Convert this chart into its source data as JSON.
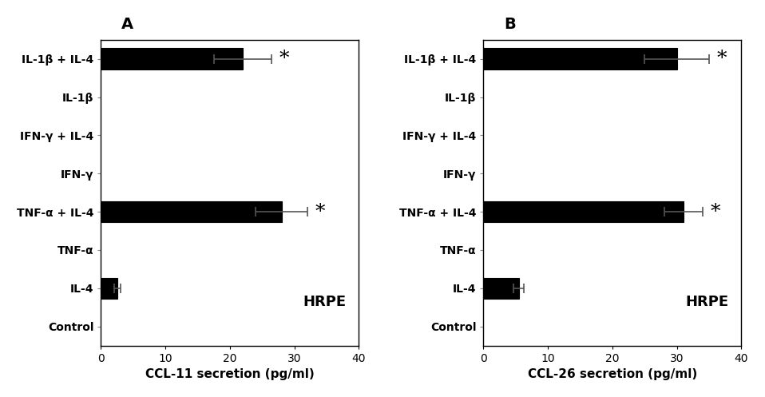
{
  "panel_A": {
    "title": "A",
    "xlabel": "CCL-11 secretion (pg/ml)",
    "categories": [
      "IL-1β + IL-4",
      "IL-1β",
      "IFN-γ + IL-4",
      "IFN-γ",
      "TNF-α + IL-4",
      "TNF-α",
      "IL-4",
      "Control"
    ],
    "values": [
      22.0,
      0.0,
      0.0,
      0.0,
      28.0,
      0.0,
      2.5,
      0.0
    ],
    "errors": [
      4.5,
      0.0,
      0.0,
      0.0,
      4.0,
      0.0,
      0.5,
      0.0
    ],
    "significant": [
      true,
      false,
      false,
      false,
      true,
      false,
      false,
      false
    ],
    "xlim": [
      0,
      40
    ],
    "xticks": [
      0,
      10,
      20,
      30,
      40
    ],
    "annotation": "HRPE"
  },
  "panel_B": {
    "title": "B",
    "xlabel": "CCL-26 secretion (pg/ml)",
    "categories": [
      "IL-1β + IL-4",
      "IL-1β",
      "IFN-γ + IL-4",
      "IFN-γ",
      "TNF-α + IL-4",
      "TNF-α",
      "IL-4",
      "Control"
    ],
    "values": [
      30.0,
      0.0,
      0.0,
      0.0,
      31.0,
      0.0,
      5.5,
      0.0
    ],
    "errors": [
      5.0,
      0.0,
      0.0,
      0.0,
      3.0,
      0.0,
      0.8,
      0.0
    ],
    "significant": [
      true,
      false,
      false,
      false,
      true,
      false,
      false,
      false
    ],
    "xlim": [
      0,
      40
    ],
    "xticks": [
      0,
      10,
      20,
      30,
      40
    ],
    "annotation": "HRPE"
  },
  "bar_color": "#000000",
  "bar_edge_color": "#000000",
  "bar_height": 0.55,
  "fig_width": 9.58,
  "fig_height": 4.97,
  "background_color": "#ffffff",
  "star_fontsize": 18,
  "label_fontsize": 10,
  "title_fontsize": 14,
  "xlabel_fontsize": 11,
  "annot_fontsize": 13
}
